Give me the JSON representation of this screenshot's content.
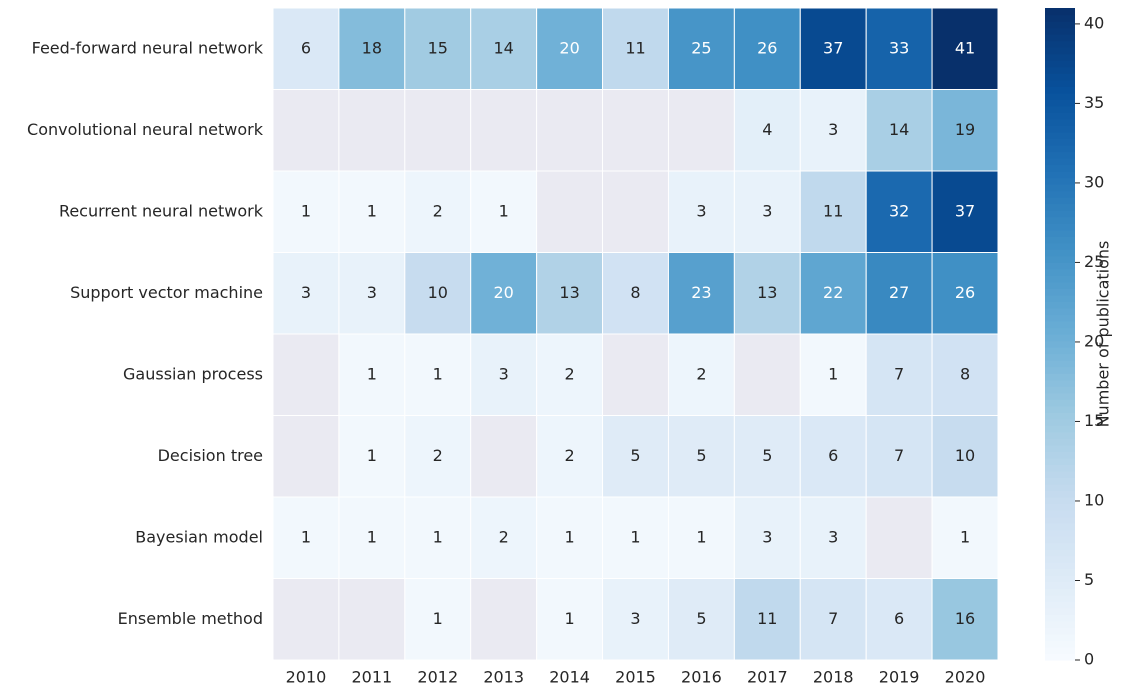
{
  "chart_data": {
    "type": "heatmap",
    "x_categories": [
      "2010",
      "2011",
      "2012",
      "2013",
      "2014",
      "2015",
      "2016",
      "2017",
      "2018",
      "2019",
      "2020"
    ],
    "y_categories": [
      "Feed-forward neural network",
      "Convolutional neural network",
      "Recurrent neural network",
      "Support vector machine",
      "Gaussian process",
      "Decision tree",
      "Bayesian model",
      "Ensemble method"
    ],
    "values": [
      [
        6,
        18,
        15,
        14,
        20,
        11,
        25,
        26,
        37,
        33,
        41
      ],
      [
        null,
        null,
        null,
        null,
        null,
        null,
        null,
        4,
        3,
        14,
        19
      ],
      [
        1,
        1,
        2,
        1,
        null,
        null,
        3,
        3,
        11,
        32,
        37
      ],
      [
        3,
        3,
        10,
        20,
        13,
        8,
        23,
        13,
        22,
        27,
        26
      ],
      [
        null,
        1,
        1,
        3,
        2,
        null,
        2,
        null,
        1,
        7,
        8
      ],
      [
        null,
        1,
        2,
        null,
        2,
        5,
        5,
        5,
        6,
        7,
        10
      ],
      [
        1,
        1,
        1,
        2,
        1,
        1,
        1,
        3,
        3,
        null,
        1
      ],
      [
        null,
        null,
        1,
        null,
        1,
        3,
        5,
        11,
        7,
        6,
        16
      ]
    ],
    "colormap": [
      "#f7fbff",
      "#deebf7",
      "#c6dbef",
      "#9ecae1",
      "#6baed6",
      "#4292c6",
      "#2171b5",
      "#08519c",
      "#08306b"
    ],
    "missing_color": "#eaeaf2",
    "clim": [
      0,
      41
    ],
    "colorbar_ticks": [
      0,
      5,
      10,
      15,
      20,
      25,
      30,
      35,
      40
    ],
    "colorbar_label": "Number of publications"
  }
}
